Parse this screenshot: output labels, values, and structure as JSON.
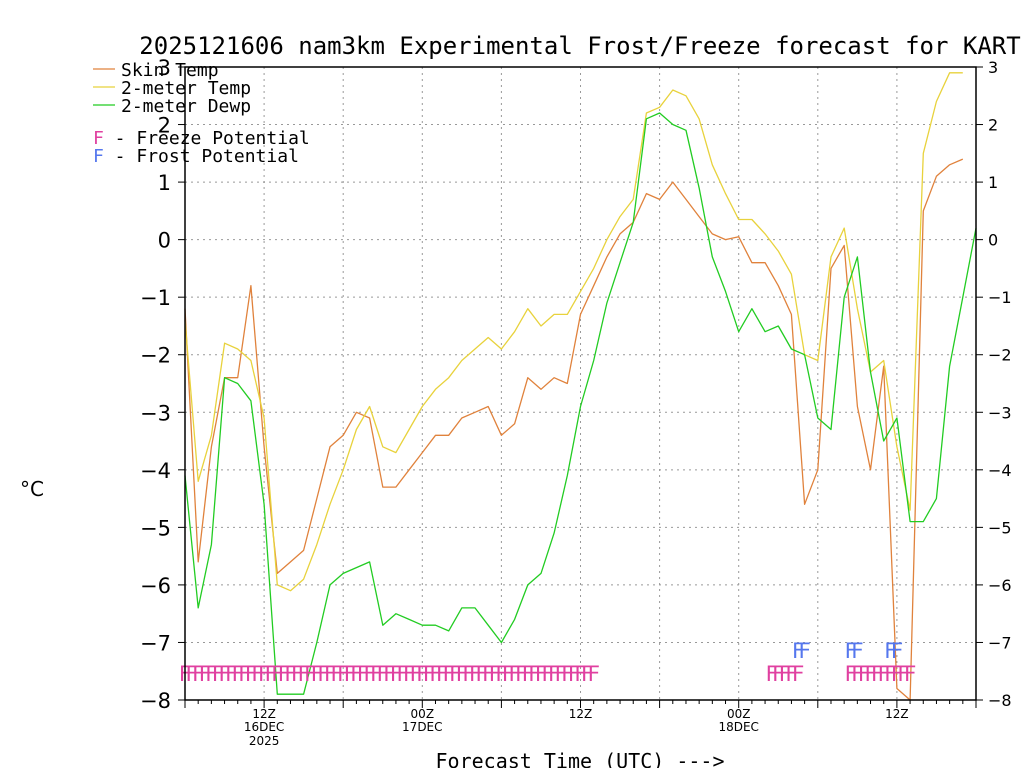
{
  "chart_data": {
    "type": "line",
    "title": "2025121606 nam3km Experimental Frost/Freeze forecast for KART",
    "xlabel": "Forecast Time (UTC) --->",
    "ylabel": "°C",
    "ylim": [
      -8,
      3
    ],
    "yticks": [
      -8,
      -7,
      -6,
      -5,
      -4,
      -3,
      -2,
      -1,
      0,
      1,
      2,
      3
    ],
    "xlim": [
      6,
      66
    ],
    "x_ticks": [
      {
        "hour": 12,
        "label": "12Z",
        "sub1": "16DEC",
        "sub2": "2025"
      },
      {
        "hour": 24,
        "label": "00Z",
        "sub1": "17DEC",
        "sub2": ""
      },
      {
        "hour": 36,
        "label": "12Z",
        "sub1": "",
        "sub2": ""
      },
      {
        "hour": 48,
        "label": "00Z",
        "sub1": "18DEC",
        "sub2": ""
      },
      {
        "hour": 60,
        "label": "12Z",
        "sub1": "",
        "sub2": ""
      }
    ],
    "series": [
      {
        "name": "Skin Temp",
        "color": "#e0823c",
        "points": [
          [
            6,
            -1.2
          ],
          [
            7,
            -5.6
          ],
          [
            8,
            -3.6
          ],
          [
            9,
            -2.4
          ],
          [
            10,
            -2.4
          ],
          [
            11,
            -0.8
          ],
          [
            12,
            -3.6
          ],
          [
            13,
            -5.8
          ],
          [
            14,
            -5.6
          ],
          [
            15,
            -5.4
          ],
          [
            16,
            -4.5
          ],
          [
            17,
            -3.6
          ],
          [
            18,
            -3.4
          ],
          [
            19,
            -3.0
          ],
          [
            20,
            -3.1
          ],
          [
            21,
            -4.3
          ],
          [
            22,
            -4.3
          ],
          [
            23,
            -4.0
          ],
          [
            24,
            -3.7
          ],
          [
            25,
            -3.4
          ],
          [
            26,
            -3.4
          ],
          [
            27,
            -3.1
          ],
          [
            28,
            -3.0
          ],
          [
            29,
            -2.9
          ],
          [
            30,
            -3.4
          ],
          [
            31,
            -3.2
          ],
          [
            32,
            -2.4
          ],
          [
            33,
            -2.6
          ],
          [
            34,
            -2.4
          ],
          [
            35,
            -2.5
          ],
          [
            36,
            -1.3
          ],
          [
            37,
            -0.8
          ],
          [
            38,
            -0.3
          ],
          [
            39,
            0.1
          ],
          [
            40,
            0.3
          ],
          [
            41,
            0.8
          ],
          [
            42,
            0.7
          ],
          [
            43,
            1.0
          ],
          [
            44,
            0.7
          ],
          [
            45,
            0.4
          ],
          [
            46,
            0.1
          ],
          [
            47,
            0.0
          ],
          [
            48,
            0.05
          ],
          [
            49,
            -0.4
          ],
          [
            50,
            -0.4
          ],
          [
            51,
            -0.8
          ],
          [
            52,
            -1.3
          ],
          [
            53,
            -4.6
          ],
          [
            54,
            -4.0
          ],
          [
            55,
            -0.5
          ],
          [
            56,
            -0.1
          ],
          [
            57,
            -2.9
          ],
          [
            58,
            -4.0
          ],
          [
            59,
            -2.2
          ],
          [
            60,
            -7.8
          ],
          [
            61,
            -8.0
          ],
          [
            62,
            0.5
          ],
          [
            63,
            1.1
          ],
          [
            64,
            1.3
          ],
          [
            65,
            1.4
          ]
        ]
      },
      {
        "name": "2-meter Temp",
        "color": "#e8d23c",
        "points": [
          [
            6,
            -1.4
          ],
          [
            7,
            -4.2
          ],
          [
            8,
            -3.4
          ],
          [
            9,
            -1.8
          ],
          [
            10,
            -1.9
          ],
          [
            11,
            -2.1
          ],
          [
            12,
            -3.1
          ],
          [
            13,
            -6.0
          ],
          [
            14,
            -6.1
          ],
          [
            15,
            -5.9
          ],
          [
            16,
            -5.3
          ],
          [
            17,
            -4.6
          ],
          [
            18,
            -4.0
          ],
          [
            19,
            -3.3
          ],
          [
            20,
            -2.9
          ],
          [
            21,
            -3.6
          ],
          [
            22,
            -3.7
          ],
          [
            23,
            -3.3
          ],
          [
            24,
            -2.9
          ],
          [
            25,
            -2.6
          ],
          [
            26,
            -2.4
          ],
          [
            27,
            -2.1
          ],
          [
            28,
            -1.9
          ],
          [
            29,
            -1.7
          ],
          [
            30,
            -1.9
          ],
          [
            31,
            -1.6
          ],
          [
            32,
            -1.2
          ],
          [
            33,
            -1.5
          ],
          [
            34,
            -1.3
          ],
          [
            35,
            -1.3
          ],
          [
            36,
            -0.9
          ],
          [
            37,
            -0.5
          ],
          [
            38,
            0.0
          ],
          [
            39,
            0.4
          ],
          [
            40,
            0.7
          ],
          [
            41,
            2.2
          ],
          [
            42,
            2.3
          ],
          [
            43,
            2.6
          ],
          [
            44,
            2.5
          ],
          [
            45,
            2.1
          ],
          [
            46,
            1.3
          ],
          [
            47,
            0.8
          ],
          [
            48,
            0.35
          ],
          [
            49,
            0.35
          ],
          [
            50,
            0.1
          ],
          [
            51,
            -0.2
          ],
          [
            52,
            -0.6
          ],
          [
            53,
            -2.0
          ],
          [
            54,
            -2.1
          ],
          [
            55,
            -0.3
          ],
          [
            56,
            0.2
          ],
          [
            57,
            -1.2
          ],
          [
            58,
            -2.3
          ],
          [
            59,
            -2.1
          ],
          [
            60,
            -3.6
          ],
          [
            61,
            -4.7
          ],
          [
            62,
            1.5
          ],
          [
            63,
            2.4
          ],
          [
            64,
            2.9
          ],
          [
            65,
            2.9
          ]
        ]
      },
      {
        "name": "2-meter Dewp",
        "color": "#22cc22",
        "points": [
          [
            6,
            -4.1
          ],
          [
            7,
            -6.4
          ],
          [
            8,
            -5.3
          ],
          [
            9,
            -2.4
          ],
          [
            10,
            -2.5
          ],
          [
            11,
            -2.8
          ],
          [
            12,
            -4.6
          ],
          [
            13,
            -7.9
          ],
          [
            14,
            -7.9
          ],
          [
            15,
            -7.9
          ],
          [
            16,
            -7.0
          ],
          [
            17,
            -6.0
          ],
          [
            18,
            -5.8
          ],
          [
            19,
            -5.7
          ],
          [
            20,
            -5.6
          ],
          [
            21,
            -6.7
          ],
          [
            22,
            -6.5
          ],
          [
            23,
            -6.6
          ],
          [
            24,
            -6.7
          ],
          [
            25,
            -6.7
          ],
          [
            26,
            -6.8
          ],
          [
            27,
            -6.4
          ],
          [
            28,
            -6.4
          ],
          [
            29,
            -6.7
          ],
          [
            30,
            -7.0
          ],
          [
            31,
            -6.6
          ],
          [
            32,
            -6.0
          ],
          [
            33,
            -5.8
          ],
          [
            34,
            -5.1
          ],
          [
            35,
            -4.1
          ],
          [
            36,
            -2.9
          ],
          [
            37,
            -2.1
          ],
          [
            38,
            -1.1
          ],
          [
            39,
            -0.4
          ],
          [
            40,
            0.3
          ],
          [
            41,
            2.1
          ],
          [
            42,
            2.2
          ],
          [
            43,
            2.0
          ],
          [
            44,
            1.9
          ],
          [
            45,
            0.9
          ],
          [
            46,
            -0.3
          ],
          [
            47,
            -0.9
          ],
          [
            48,
            -1.6
          ],
          [
            49,
            -1.2
          ],
          [
            50,
            -1.6
          ],
          [
            51,
            -1.5
          ],
          [
            52,
            -1.9
          ],
          [
            53,
            -2.0
          ],
          [
            54,
            -3.1
          ],
          [
            55,
            -3.3
          ],
          [
            56,
            -1.0
          ],
          [
            57,
            -0.3
          ],
          [
            58,
            -2.3
          ],
          [
            59,
            -3.5
          ],
          [
            60,
            -3.1
          ],
          [
            61,
            -4.9
          ],
          [
            62,
            -4.9
          ],
          [
            63,
            -4.5
          ],
          [
            64,
            -2.2
          ],
          [
            65,
            -1.0
          ],
          [
            66,
            0.2
          ]
        ]
      }
    ],
    "markers": {
      "freeze_symbol": "F",
      "freeze_color": "#e040a0",
      "frost_symbol": "F",
      "frost_color": "#5577ee",
      "freeze_hours": [
        6,
        6.5,
        7,
        7.5,
        8,
        8.5,
        9,
        9.5,
        10,
        10.5,
        11,
        11.5,
        12,
        12.5,
        13,
        13.5,
        14,
        14.5,
        15,
        15.5,
        16,
        16.5,
        17,
        17.5,
        18,
        18.5,
        19,
        19.5,
        20,
        20.5,
        21,
        21.5,
        22,
        22.5,
        23,
        23.5,
        24,
        24.5,
        25,
        25.5,
        26,
        26.5,
        27,
        27.5,
        28,
        28.5,
        29,
        29.5,
        30,
        30.5,
        31,
        31.5,
        32,
        32.5,
        33,
        33.5,
        34,
        34.5,
        35,
        35.5,
        36,
        36.5,
        37,
        50.5,
        51,
        51.5,
        52,
        52.5,
        56.5,
        57,
        57.5,
        58,
        58.5,
        59,
        59.5,
        60,
        60.5,
        61
      ],
      "frost_hours": [
        52.5,
        53,
        56.5,
        57,
        59.5,
        60
      ]
    },
    "legend": {
      "entries": [
        {
          "label": "Skin Temp",
          "color": "#e0823c"
        },
        {
          "label": "2-meter Temp",
          "color": "#e8d23c"
        },
        {
          "label": "2-meter Dewp",
          "color": "#22cc22"
        }
      ],
      "potentials": [
        {
          "symbol": "F",
          "label": " - Freeze Potential",
          "color": "#e040a0"
        },
        {
          "symbol": "F",
          "label": " - Frost Potential",
          "color": "#5577ee"
        }
      ],
      "position": "top-left"
    }
  }
}
